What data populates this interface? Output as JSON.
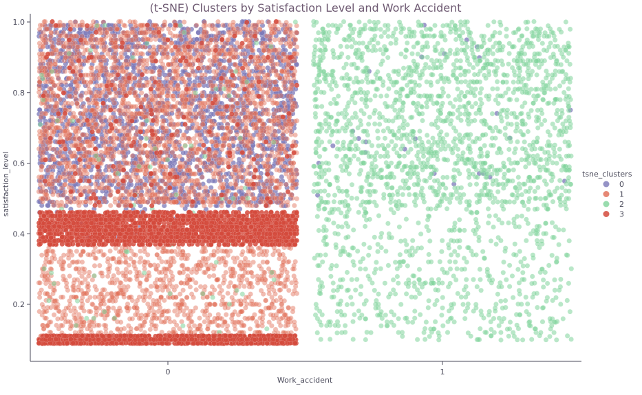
{
  "chart_data": {
    "type": "scatter",
    "title": "(t-SNE) Clusters by Satisfaction Level and Work Accident",
    "xlabel": "Work_accident",
    "ylabel": "satisfaction_level",
    "x_categories": [
      "0",
      "1"
    ],
    "x_jitter_halfwidth": 0.47,
    "ylim": [
      0.05,
      1.03
    ],
    "yticks": [
      0.2,
      0.4,
      0.6,
      0.8,
      1.0
    ],
    "ytick_labels": [
      "0.2",
      "0.4",
      "0.6",
      "0.8",
      "1.0"
    ],
    "grid": false,
    "legend": {
      "title": "tsne_clusters",
      "position": "center-right",
      "entries": [
        "0",
        "1",
        "2",
        "3"
      ]
    },
    "series": [
      {
        "name": "0",
        "color": "#7b78b8",
        "alpha": 0.75,
        "distribution": [
          {
            "x": 0,
            "y_range": [
              0.48,
              1.0
            ],
            "approx_count": 2200
          },
          {
            "x": 0,
            "y_range": [
              0.38,
              0.48
            ],
            "approx_count": 60
          },
          {
            "x": 1,
            "y_range": [
              0.5,
              1.0
            ],
            "approx_count": 25
          }
        ]
      },
      {
        "name": "1",
        "color": "#e06a52",
        "alpha": 0.45,
        "distribution": [
          {
            "x": 0,
            "y_range": [
              0.48,
              1.0
            ],
            "approx_count": 2800
          },
          {
            "x": 0,
            "y_range": [
              0.11,
              0.36
            ],
            "approx_count": 1100
          }
        ]
      },
      {
        "name": "2",
        "color": "#7fd39a",
        "alpha": 0.55,
        "distribution": [
          {
            "x": 1,
            "y_range": [
              0.48,
              1.0
            ],
            "approx_count": 1700
          },
          {
            "x": 1,
            "y_range": [
              0.09,
              0.48
            ],
            "approx_count": 600
          },
          {
            "x": 0,
            "y_range": [
              0.1,
              1.0
            ],
            "approx_count": 90
          }
        ]
      },
      {
        "name": "3",
        "color": "#d44a3c",
        "alpha": 0.85,
        "distribution": [
          {
            "x": 0,
            "y_range": [
              0.37,
              0.46
            ],
            "approx_count": 1900
          },
          {
            "x": 0,
            "y_range": [
              0.09,
              0.11
            ],
            "approx_count": 1100
          },
          {
            "x": 0,
            "y_range": [
              0.48,
              1.0
            ],
            "approx_count": 150
          }
        ]
      }
    ]
  }
}
